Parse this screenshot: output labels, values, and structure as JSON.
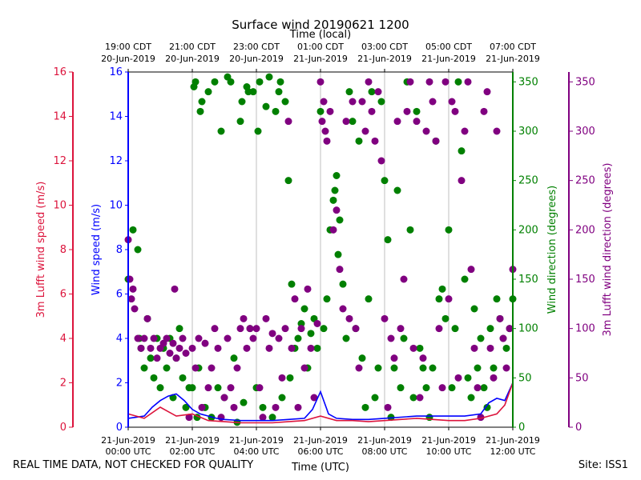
{
  "chart_data": {
    "type": "scatter",
    "title": "Surface wind 20190621 1200",
    "xlabel_bottom": "Time (UTC)",
    "xlabel_top": "Time (local)",
    "x_range": [
      "2019-06-21T00:00Z",
      "2019-06-21T12:00Z"
    ],
    "bottom_ticks": [
      [
        "21-Jun-2019",
        "00:00 UTC"
      ],
      [
        "21-Jun-2019",
        "02:00 UTC"
      ],
      [
        "21-Jun-2019",
        "04:00 UTC"
      ],
      [
        "21-Jun-2019",
        "06:00 UTC"
      ],
      [
        "21-Jun-2019",
        "08:00 UTC"
      ],
      [
        "21-Jun-2019",
        "10:00 UTC"
      ],
      [
        "21-Jun-2019",
        "12:00 UTC"
      ]
    ],
    "top_ticks": [
      [
        "19:00 CDT",
        "20-Jun-2019"
      ],
      [
        "21:00 CDT",
        "20-Jun-2019"
      ],
      [
        "23:00 CDT",
        "20-Jun-2019"
      ],
      [
        "01:00 CDT",
        "21-Jun-2019"
      ],
      [
        "03:00 CDT",
        "21-Jun-2019"
      ],
      [
        "05:00 CDT",
        "21-Jun-2019"
      ],
      [
        "07:00 CDT",
        "21-Jun-2019"
      ]
    ],
    "axes": {
      "lufft_speed": {
        "label": "3m Lufft wind speed (m/s)",
        "range": [
          0,
          16
        ],
        "ticks": [
          "0",
          "2",
          "4",
          "6",
          "8",
          "10",
          "12",
          "14",
          "16"
        ],
        "color": "#dc143c"
      },
      "speed": {
        "label": "Wind speed (m/s)",
        "range": [
          0,
          16
        ],
        "ticks": [
          "0",
          "2",
          "4",
          "6",
          "8",
          "10",
          "12",
          "14",
          "16"
        ],
        "color": "#0000ff"
      },
      "direction": {
        "label": "Wind direction (degrees)",
        "range": [
          0,
          360
        ],
        "ticks": [
          "0",
          "50",
          "100",
          "150",
          "200",
          "250",
          "300",
          "350"
        ],
        "color": "#008000"
      },
      "lufft_direction": {
        "label": "3m Lufft wind direction (degrees)",
        "range": [
          0,
          360
        ],
        "ticks": [
          "0",
          "50",
          "100",
          "150",
          "200",
          "250",
          "300",
          "350"
        ],
        "color": "#800080"
      }
    },
    "grid": "vertical",
    "series": [
      {
        "key": "speed",
        "axis": "speed",
        "style": "line",
        "color": "#0000ff",
        "x_hours": [
          0,
          0.5,
          0.75,
          1.0,
          1.25,
          1.5,
          1.75,
          2.0,
          2.25,
          2.5,
          2.75,
          3.0,
          3.5,
          4.0,
          4.5,
          5.0,
          5.5,
          5.75,
          6.0,
          6.25,
          6.5,
          7.0,
          7.5,
          8.0,
          8.5,
          9.0,
          9.5,
          10.0,
          10.5,
          11.0,
          11.25,
          11.5,
          11.75,
          12.0
        ],
        "y": [
          0.4,
          0.5,
          0.9,
          1.2,
          1.4,
          1.5,
          1.2,
          0.8,
          0.6,
          0.5,
          0.4,
          0.35,
          0.3,
          0.3,
          0.3,
          0.35,
          0.4,
          0.8,
          1.6,
          0.6,
          0.4,
          0.35,
          0.35,
          0.4,
          0.45,
          0.5,
          0.5,
          0.5,
          0.5,
          0.6,
          1.1,
          1.3,
          1.2,
          2.0
        ]
      },
      {
        "key": "lufft_speed",
        "axis": "lufft_speed",
        "style": "line",
        "color": "#dc143c",
        "x_hours": [
          0,
          0.5,
          1.0,
          1.25,
          1.5,
          2.0,
          2.5,
          3.0,
          3.5,
          4.0,
          4.5,
          5.0,
          5.5,
          6.0,
          6.5,
          7.0,
          7.5,
          8.0,
          8.5,
          9.0,
          9.5,
          10.0,
          10.5,
          11.0,
          11.5,
          11.75,
          12.0
        ],
        "y": [
          0.6,
          0.4,
          0.9,
          0.7,
          0.5,
          0.6,
          0.3,
          0.25,
          0.2,
          0.2,
          0.2,
          0.25,
          0.3,
          0.5,
          0.3,
          0.3,
          0.25,
          0.3,
          0.35,
          0.4,
          0.35,
          0.3,
          0.3,
          0.4,
          0.6,
          1.0,
          2.0
        ]
      },
      {
        "key": "direction",
        "axis": "direction",
        "style": "points",
        "color": "#008000",
        "x_hours": [
          0.0,
          0.15,
          0.3,
          0.35,
          0.4,
          0.5,
          0.6,
          0.7,
          0.8,
          0.9,
          1.0,
          1.1,
          1.2,
          1.3,
          1.4,
          1.5,
          1.6,
          1.7,
          1.8,
          1.9,
          2.0,
          2.05,
          2.1,
          2.15,
          2.2,
          2.25,
          2.3,
          2.4,
          2.5,
          2.6,
          2.7,
          2.8,
          2.9,
          3.0,
          3.1,
          3.2,
          3.3,
          3.4,
          3.5,
          3.55,
          3.6,
          3.7,
          3.75,
          3.8,
          3.9,
          4.0,
          4.05,
          4.1,
          4.2,
          4.3,
          4.4,
          4.5,
          4.6,
          4.7,
          4.75,
          4.8,
          4.9,
          5.0,
          5.05,
          5.1,
          5.2,
          5.3,
          5.4,
          5.5,
          5.6,
          5.7,
          5.8,
          5.9,
          6.0,
          6.1,
          6.2,
          6.3,
          6.4,
          6.45,
          6.5,
          6.55,
          6.6,
          6.7,
          6.8,
          6.9,
          7.0,
          7.1,
          7.2,
          7.3,
          7.4,
          7.5,
          7.6,
          7.7,
          7.8,
          7.9,
          8.0,
          8.1,
          8.2,
          8.3,
          8.4,
          8.5,
          8.6,
          8.7,
          8.8,
          8.9,
          9.0,
          9.1,
          9.2,
          9.3,
          9.4,
          9.5,
          9.6,
          9.7,
          9.8,
          9.9,
          10.0,
          10.1,
          10.2,
          10.3,
          10.4,
          10.5,
          10.6,
          10.7,
          10.8,
          10.9,
          11.0,
          11.1,
          11.2,
          11.3,
          11.4,
          11.5,
          11.6,
          11.7,
          11.8,
          11.9,
          12.0
        ],
        "y": [
          150,
          200,
          180,
          90,
          80,
          60,
          110,
          70,
          50,
          90,
          40,
          80,
          60,
          90,
          30,
          70,
          100,
          50,
          20,
          40,
          40,
          345,
          350,
          10,
          60,
          320,
          330,
          20,
          340,
          10,
          350,
          40,
          300,
          30,
          355,
          350,
          70,
          5,
          310,
          330,
          25,
          345,
          340,
          100,
          340,
          40,
          300,
          350,
          20,
          325,
          355,
          10,
          320,
          340,
          350,
          30,
          330,
          250,
          50,
          145,
          80,
          90,
          105,
          120,
          60,
          95,
          110,
          80,
          320,
          100,
          130,
          200,
          230,
          240,
          255,
          175,
          210,
          145,
          90,
          340,
          310,
          100,
          290,
          70,
          20,
          130,
          340,
          30,
          60,
          330,
          250,
          190,
          10,
          60,
          240,
          40,
          90,
          350,
          200,
          30,
          320,
          80,
          60,
          40,
          10,
          60,
          290,
          130,
          140,
          110,
          200,
          40,
          100,
          350,
          280,
          150,
          50,
          30,
          120,
          60,
          90,
          40,
          20,
          100,
          60,
          130,
          110,
          90,
          80,
          100,
          130
        ],
        "radius": 4.5
      },
      {
        "key": "lufft_direction",
        "axis": "lufft_direction",
        "style": "points",
        "color": "#800080",
        "x_hours": [
          0.0,
          0.05,
          0.1,
          0.15,
          0.2,
          0.3,
          0.4,
          0.5,
          0.6,
          0.7,
          0.8,
          0.9,
          1.0,
          1.1,
          1.2,
          1.3,
          1.4,
          1.45,
          1.5,
          1.6,
          1.7,
          1.8,
          1.9,
          2.0,
          2.1,
          2.2,
          2.3,
          2.4,
          2.5,
          2.6,
          2.7,
          2.8,
          2.9,
          3.0,
          3.1,
          3.2,
          3.3,
          3.4,
          3.5,
          3.6,
          3.7,
          3.8,
          3.9,
          4.0,
          4.1,
          4.2,
          4.3,
          4.4,
          4.5,
          4.6,
          4.7,
          4.8,
          4.9,
          5.0,
          5.1,
          5.2,
          5.3,
          5.4,
          5.5,
          5.6,
          5.7,
          5.8,
          5.9,
          6.0,
          6.05,
          6.1,
          6.15,
          6.2,
          6.3,
          6.4,
          6.5,
          6.6,
          6.7,
          6.8,
          6.9,
          7.0,
          7.1,
          7.2,
          7.3,
          7.4,
          7.5,
          7.6,
          7.7,
          7.8,
          7.9,
          8.0,
          8.1,
          8.2,
          8.3,
          8.4,
          8.5,
          8.6,
          8.7,
          8.8,
          8.9,
          9.0,
          9.1,
          9.2,
          9.3,
          9.4,
          9.5,
          9.6,
          9.7,
          9.8,
          9.9,
          10.0,
          10.1,
          10.2,
          10.3,
          10.4,
          10.5,
          10.6,
          10.7,
          10.8,
          10.9,
          11.0,
          11.1,
          11.2,
          11.3,
          11.4,
          11.5,
          11.6,
          11.7,
          11.8,
          11.9,
          12.0
        ],
        "y": [
          190,
          150,
          130,
          140,
          120,
          90,
          80,
          90,
          110,
          80,
          90,
          70,
          80,
          85,
          90,
          75,
          85,
          140,
          70,
          80,
          90,
          75,
          10,
          80,
          60,
          90,
          20,
          85,
          40,
          60,
          100,
          80,
          10,
          30,
          90,
          40,
          20,
          60,
          100,
          110,
          80,
          100,
          90,
          100,
          40,
          10,
          110,
          80,
          95,
          20,
          90,
          50,
          100,
          310,
          80,
          130,
          20,
          100,
          60,
          140,
          80,
          30,
          105,
          350,
          310,
          330,
          300,
          290,
          320,
          200,
          220,
          160,
          120,
          310,
          110,
          330,
          100,
          60,
          330,
          300,
          350,
          320,
          290,
          340,
          270,
          110,
          20,
          90,
          70,
          310,
          100,
          150,
          320,
          350,
          80,
          310,
          30,
          70,
          300,
          350,
          330,
          290,
          100,
          40,
          350,
          130,
          330,
          320,
          50,
          250,
          300,
          350,
          160,
          80,
          40,
          10,
          320,
          340,
          80,
          50,
          300,
          110,
          90,
          60,
          100,
          160
        ],
        "radius": 4.5
      }
    ]
  },
  "footer": {
    "note": "REAL TIME DATA, NOT CHECKED FOR QUALITY",
    "site": "Site: ISS1"
  }
}
